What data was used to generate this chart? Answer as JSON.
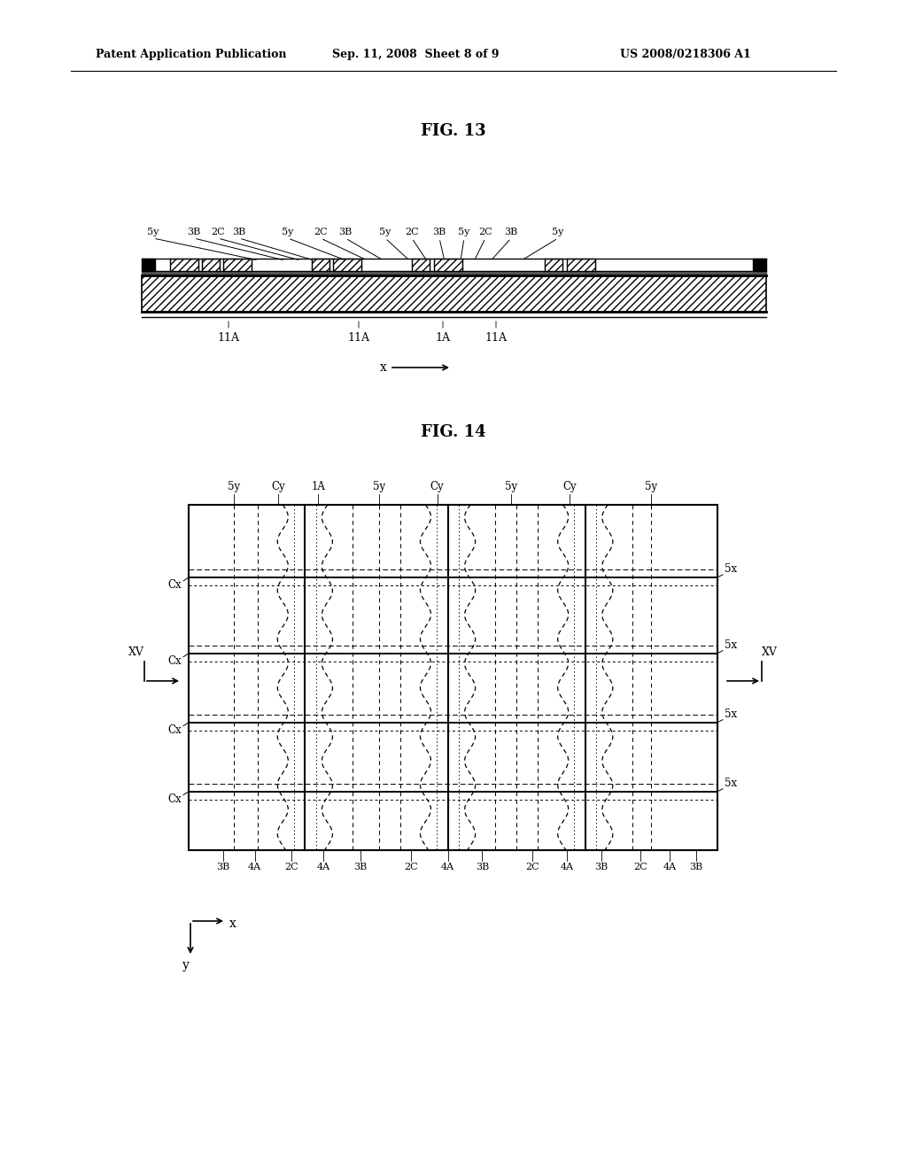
{
  "header_left": "Patent Application Publication",
  "header_mid": "Sep. 11, 2008  Sheet 8 of 9",
  "header_right": "US 2008/0218306 A1",
  "fig13_title": "FIG. 13",
  "fig14_title": "FIG. 14",
  "bg_color": "#ffffff",
  "line_color": "#000000"
}
